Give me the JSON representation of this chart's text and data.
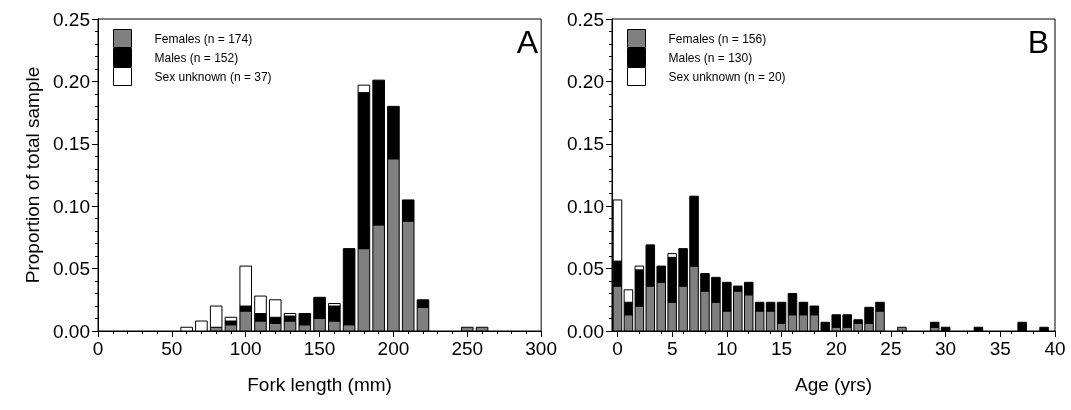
{
  "chart_data": [
    {
      "type": "bar",
      "stacked": true,
      "xlabel": "Fork length (mm)",
      "ylabel": "Proportion of total sample",
      "annotations": [
        "A"
      ],
      "legend": "top left",
      "x": [
        60,
        70,
        80,
        90,
        100,
        110,
        120,
        130,
        140,
        150,
        160,
        170,
        180,
        190,
        200,
        210,
        220,
        250,
        260
      ],
      "series": [
        {
          "name": "Females (n = 174)",
          "color": "#808080",
          "values": [
            null,
            null,
            0.003,
            0.005,
            0.016,
            0.008,
            0.006,
            0.008,
            0.005,
            0.01,
            0.008,
            0.005,
            0.066,
            0.085,
            0.138,
            0.088,
            0.019,
            0.003,
            0.003
          ]
        },
        {
          "name": "Males (n = 152)",
          "color": "#000000",
          "values": [
            null,
            null,
            null,
            0.003,
            0.004,
            0.006,
            0.005,
            0.004,
            0.009,
            0.017,
            0.012,
            0.061,
            0.125,
            0.116,
            0.042,
            0.017,
            0.006,
            null,
            null
          ]
        },
        {
          "name": "Sex unknown (n = 37)",
          "color": "#ffffff",
          "values": [
            0.003,
            0.008,
            0.017,
            0.003,
            0.032,
            0.014,
            0.014,
            0.002,
            null,
            null,
            0.002,
            null,
            0.006,
            null,
            null,
            null,
            null,
            null,
            null
          ]
        }
      ],
      "xlim": [
        0,
        300
      ],
      "xticks": [
        0,
        50,
        100,
        150,
        200,
        250,
        300
      ],
      "ylim": [
        0,
        0.25
      ],
      "yticks": [
        {
          "value": 0,
          "label": "0.00"
        },
        {
          "value": 0.05,
          "label": "0.05"
        },
        {
          "value": 0.1,
          "label": "0.10"
        },
        {
          "value": 0.15,
          "label": "0.15"
        },
        {
          "value": 0.2,
          "label": "0.20"
        },
        {
          "value": 0.25,
          "label": "0.25"
        }
      ],
      "grid": false
    },
    {
      "type": "bar",
      "stacked": true,
      "xlabel": "Age (yrs)",
      "annotations": [
        "B"
      ],
      "legend": "top left",
      "x": [
        0,
        1,
        2,
        3,
        4,
        5,
        6,
        7,
        8,
        9,
        10,
        11,
        12,
        13,
        14,
        15,
        16,
        17,
        18,
        19,
        20,
        21,
        22,
        23,
        24,
        26,
        29,
        30,
        33,
        37,
        39
      ],
      "series": [
        {
          "name": "Females (n = 156)",
          "color": "#808080",
          "values": [
            0.036,
            0.013,
            0.02,
            0.036,
            0.039,
            0.023,
            0.036,
            0.052,
            0.032,
            0.023,
            0.016,
            0.032,
            0.029,
            0.016,
            0.016,
            0.006,
            0.013,
            0.013,
            0.013,
            null,
            0.003,
            0.003,
            0.006,
            0.006,
            0.016,
            0.003,
            0.003,
            null,
            null,
            null,
            null
          ]
        },
        {
          "name": "Males (n = 130)",
          "color": "#000000",
          "values": [
            0.02,
            0.01,
            0.029,
            0.033,
            0.013,
            0.036,
            0.03,
            0.056,
            0.014,
            0.02,
            0.023,
            0.004,
            0.01,
            0.007,
            0.007,
            0.017,
            0.017,
            0.01,
            0.007,
            0.007,
            0.01,
            0.01,
            0.003,
            0.013,
            0.007,
            null,
            0.004,
            0.003,
            0.003,
            0.007,
            0.003
          ]
        },
        {
          "name": "Sex unknown (n = 20)",
          "color": "#ffffff",
          "values": [
            0.049,
            0.01,
            0.003,
            null,
            null,
            0.003,
            null,
            null,
            null,
            null,
            null,
            null,
            null,
            null,
            null,
            null,
            null,
            null,
            null,
            null,
            null,
            null,
            null,
            null,
            null,
            null,
            null,
            null,
            null,
            null,
            null
          ]
        }
      ],
      "xlim": [
        -0.5,
        40
      ],
      "xticks": [
        0,
        5,
        10,
        15,
        20,
        25,
        30,
        35,
        40
      ],
      "ylim": [
        0,
        0.25
      ],
      "yticks": [
        {
          "value": 0,
          "label": "0.00"
        },
        {
          "value": 0.05,
          "label": "0.05"
        },
        {
          "value": 0.1,
          "label": "0.10"
        },
        {
          "value": 0.15,
          "label": "0.15"
        },
        {
          "value": 0.2,
          "label": "0.20"
        },
        {
          "value": 0.25,
          "label": "0.25"
        }
      ],
      "grid": false
    }
  ]
}
